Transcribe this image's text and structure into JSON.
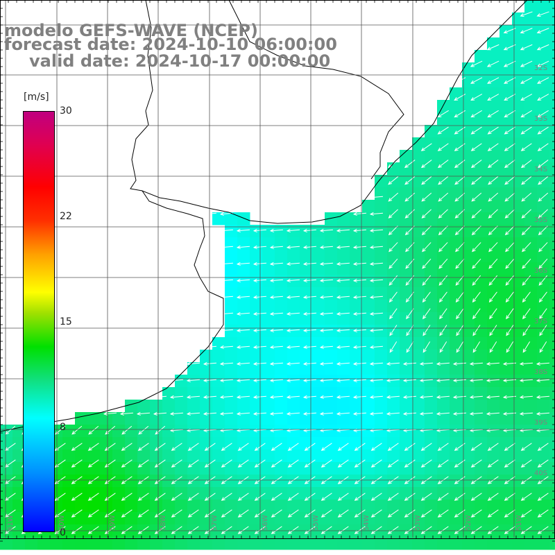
{
  "title": {
    "line1": "modelo GEFS-WAVE (NCEP)",
    "line2": "forecast date: 2024-10-10 06:00:00",
    "line3": "valid date: 2024-10-17 00:00:00"
  },
  "colorbar": {
    "unit": "[m/s]",
    "ticks": [
      {
        "label": "30",
        "value": 30
      },
      {
        "label": "22",
        "value": 22
      },
      {
        "label": "15",
        "value": 15
      },
      {
        "label": "8",
        "value": 8
      },
      {
        "label": "0",
        "value": 0
      }
    ]
  },
  "lat_labels": [
    "32S",
    "33S",
    "34S",
    "35S",
    "36S",
    "37S",
    "38S",
    "39S",
    "40S"
  ],
  "lon_labels": [
    "61W",
    "60W",
    "59W",
    "58W",
    "57W",
    "56W",
    "55W",
    "54W",
    "53W",
    "52W",
    "51W"
  ],
  "colors": {
    "land": "#ffffff",
    "coast": "#000000",
    "grid": "#555555",
    "arrow": "#ffffff",
    "label": "#808080"
  }
}
